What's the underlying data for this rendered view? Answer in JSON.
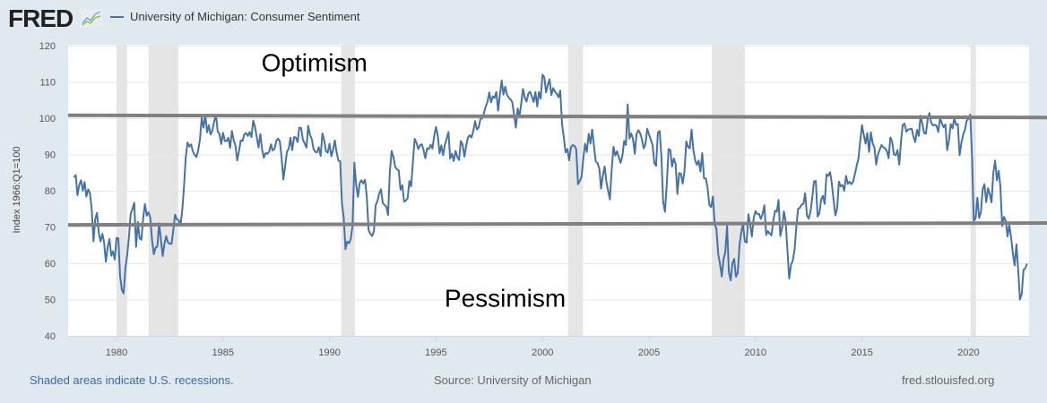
{
  "header": {
    "logo_text": "FRED",
    "series_title": "University of Michigan: Consumer Sentiment"
  },
  "footer": {
    "recession_note": "Shaded areas indicate U.S. recessions.",
    "source": "Source: University of Michigan",
    "site": "fred.stlouisfed.org"
  },
  "colors": {
    "line": "#4572a7",
    "recession": "#e5e5e5",
    "threshold": "#808080",
    "grid": "#e6e6e6"
  },
  "chart_data": {
    "type": "line",
    "title": "University of Michigan: Consumer Sentiment",
    "xlabel": "",
    "ylabel": "Index 1966:Q1=100",
    "ylim": [
      40,
      120
    ],
    "xlim": [
      1977.75,
      1922.85
    ],
    "yticks": [
      40,
      50,
      60,
      70,
      80,
      90,
      100,
      110,
      120
    ],
    "xticks": [
      1980,
      1985,
      1990,
      1995,
      2000,
      2005,
      2010,
      2015,
      2020
    ],
    "grid": true,
    "legend": "top-left",
    "annotations": [
      {
        "text": "Optimism",
        "x": 1986.8,
        "y": 113
      },
      {
        "text": "Pessimism",
        "x": 1995.4,
        "y": 48
      }
    ],
    "reference_lines": [
      {
        "name": "optimism-threshold",
        "y_start": 100.8,
        "y_end": 100.2
      },
      {
        "name": "pessimism-threshold",
        "y_start": 70.6,
        "y_end": 71.1
      }
    ],
    "recessions": [
      [
        1980.0,
        1980.5
      ],
      [
        1981.5,
        1982.9
      ],
      [
        1990.55,
        1991.2
      ],
      [
        2001.2,
        2001.9
      ],
      [
        2007.95,
        2009.5
      ],
      [
        2020.1,
        2020.35
      ]
    ],
    "start_year": 1978,
    "frequency": "monthly",
    "series": [
      {
        "name": "University of Michigan: Consumer Sentiment",
        "values": [
          83.7,
          84.3,
          78.8,
          81.6,
          82.9,
          80.0,
          82.4,
          78.4,
          80.4,
          79.3,
          75.0,
          66.1,
          72.1,
          73.9,
          68.4,
          66.0,
          68.1,
          65.8,
          60.4,
          64.5,
          66.7,
          62.1,
          63.3,
          61.0,
          67.0,
          66.9,
          56.5,
          52.7,
          51.7,
          58.7,
          62.3,
          67.4,
          73.7,
          75.0,
          76.7,
          64.5,
          71.4,
          66.9,
          66.5,
          72.4,
          76.3,
          73.1,
          74.1,
          72.7,
          66.5,
          62.5,
          64.3,
          64.6,
          71.0,
          66.5,
          62.0,
          65.5,
          67.5,
          65.7,
          65.4,
          65.4,
          69.3,
          73.4,
          72.1,
          71.9,
          70.4,
          74.6,
          80.8,
          89.1,
          93.3,
          92.2,
          92.8,
          90.9,
          89.9,
          89.3,
          91.1,
          94.2,
          100.1,
          97.4,
          101.0,
          96.1,
          98.1,
          95.5,
          96.6,
          99.1,
          100.9,
          96.3,
          95.7,
          92.9,
          96.0,
          93.7,
          93.7,
          94.6,
          91.8,
          96.5,
          94.0,
          92.4,
          88.4,
          90.9,
          93.9,
          93.7,
          95.6,
          95.9,
          95.1,
          96.2,
          94.8,
          99.3,
          97.7,
          94.9,
          91.9,
          95.6,
          91.4,
          89.1,
          90.4,
          90.2,
          90.8,
          92.8,
          91.1,
          91.5,
          93.7,
          94.4,
          93.6,
          89.3,
          83.1,
          86.8,
          90.8,
          91.6,
          94.6,
          91.2,
          94.8,
          94.7,
          93.4,
          97.4,
          97.3,
          94.1,
          93.0,
          91.9,
          97.9,
          95.4,
          94.3,
          91.5,
          90.7,
          90.6,
          92.0,
          89.6,
          95.8,
          93.9,
          90.9,
          90.5,
          93.0,
          89.5,
          91.3,
          93.9,
          90.6,
          88.3,
          88.2,
          76.4,
          72.8,
          63.9,
          66.0,
          65.5,
          66.8,
          70.4,
          87.7,
          81.8,
          78.3,
          82.1,
          82.9,
          82.0,
          83.0,
          78.3,
          69.1,
          68.2,
          67.5,
          68.8,
          76.0,
          77.2,
          79.2,
          80.4,
          76.6,
          76.1,
          75.6,
          73.3,
          85.3,
          91.0,
          89.3,
          86.6,
          85.9,
          85.6,
          80.3,
          81.5,
          77.0,
          77.3,
          77.9,
          82.7,
          81.2,
          88.2,
          94.3,
          93.2,
          91.5,
          92.6,
          92.8,
          91.2,
          89.0,
          91.7,
          91.5,
          92.7,
          91.6,
          95.1,
          97.6,
          95.1,
          90.3,
          92.5,
          89.8,
          92.7,
          94.4,
          96.2,
          88.9,
          90.2,
          88.2,
          91.0,
          89.3,
          88.5,
          93.7,
          92.7,
          89.4,
          92.4,
          94.7,
          95.3,
          94.7,
          96.5,
          99.2,
          96.9,
          97.4,
          99.7,
          100.0,
          101.4,
          103.2,
          104.5,
          107.1,
          104.4,
          106.0,
          105.6,
          107.2,
          102.1,
          106.6,
          110.4,
          106.5,
          108.7,
          106.5,
          105.6,
          105.2,
          104.4,
          100.9,
          97.4,
          102.7,
          100.5,
          103.9,
          108.1,
          105.7,
          104.6,
          106.8,
          107.3,
          106.0,
          104.5,
          107.2,
          103.2,
          107.2,
          105.4,
          112.0,
          111.3,
          107.1,
          109.2,
          110.7,
          106.4,
          108.3,
          107.3,
          106.8,
          105.8,
          107.6,
          98.4,
          94.7,
          90.6,
          91.5,
          88.4,
          92.0,
          92.6,
          92.4,
          91.5,
          81.8,
          82.7,
          83.9,
          88.8,
          93.0,
          90.7,
          95.7,
          93.0,
          96.9,
          92.4,
          88.1,
          87.6,
          86.1,
          80.6,
          84.2,
          86.7,
          82.4,
          79.9,
          77.6,
          86.0,
          92.1,
          89.7,
          90.9,
          89.3,
          87.7,
          89.6,
          93.7,
          92.6,
          103.8,
          94.4,
          95.8,
          94.2,
          90.2,
          95.6,
          96.7,
          95.9,
          94.2,
          91.7,
          92.8,
          97.1,
          95.5,
          94.1,
          92.6,
          87.7,
          86.9,
          96.0,
          96.5,
          89.1,
          76.9,
          74.2,
          81.6,
          91.5,
          91.2,
          86.7,
          88.9,
          87.4,
          79.1,
          84.9,
          84.7,
          82.0,
          85.4,
          93.6,
          92.1,
          91.7,
          96.9,
          91.3,
          88.4,
          87.1,
          88.3,
          85.3,
          90.4,
          83.4,
          83.4,
          80.9,
          76.1,
          75.5,
          78.4,
          70.8,
          69.5,
          62.6,
          59.8,
          56.4,
          61.2,
          63.0,
          70.3,
          57.6,
          55.3,
          60.1,
          61.2,
          56.3,
          57.3,
          65.1,
          68.7,
          70.8,
          66.0,
          65.7,
          73.5,
          70.6,
          67.4,
          72.5,
          74.4,
          73.6,
          73.6,
          72.2,
          73.6,
          76.0,
          67.8,
          68.9,
          68.2,
          67.7,
          71.6,
          74.5,
          74.2,
          77.5,
          67.5,
          69.8,
          74.3,
          71.5,
          63.7,
          55.8,
          59.5,
          60.8,
          63.7,
          69.9,
          75.0,
          75.3,
          76.2,
          76.4,
          79.3,
          73.2,
          72.3,
          74.3,
          78.3,
          82.6,
          82.7,
          72.9,
          73.8,
          77.6,
          78.6,
          76.4,
          84.5,
          84.1,
          85.1,
          82.1,
          77.5,
          73.2,
          75.1,
          82.5,
          81.2,
          81.6,
          80.0,
          84.1,
          81.9,
          82.5,
          81.8,
          82.5,
          84.6,
          86.9,
          88.8,
          93.6,
          98.1,
          95.4,
          93.0,
          95.9,
          90.7,
          96.1,
          93.1,
          91.9,
          87.2,
          90.0,
          91.3,
          92.6,
          92.0,
          91.7,
          91.0,
          89.0,
          94.7,
          93.5,
          90.0,
          89.8,
          91.2,
          87.2,
          93.8,
          98.2,
          98.5,
          96.3,
          96.9,
          97.0,
          97.1,
          95.0,
          93.4,
          96.8,
          95.1,
          100.7,
          98.5,
          95.9,
          95.7,
          99.7,
          101.4,
          98.8,
          98.0,
          98.2,
          97.9,
          96.2,
          100.1,
          98.6,
          97.5,
          98.3,
          91.2,
          93.8,
          98.4,
          97.2,
          100.0,
          98.2,
          98.4,
          89.8,
          93.2,
          95.5,
          96.8,
          99.3,
          99.8,
          101.0,
          89.1,
          71.8,
          72.3,
          78.1,
          72.5,
          74.1,
          80.4,
          81.8,
          76.9,
          80.7,
          79.0,
          76.8,
          84.9,
          88.3,
          82.9,
          85.5,
          81.2,
          70.3,
          72.8,
          71.7,
          67.4,
          70.6,
          67.2,
          62.8,
          59.4,
          65.2,
          58.4,
          50.0,
          51.5,
          58.2,
          58.6,
          59.9
        ]
      }
    ]
  }
}
